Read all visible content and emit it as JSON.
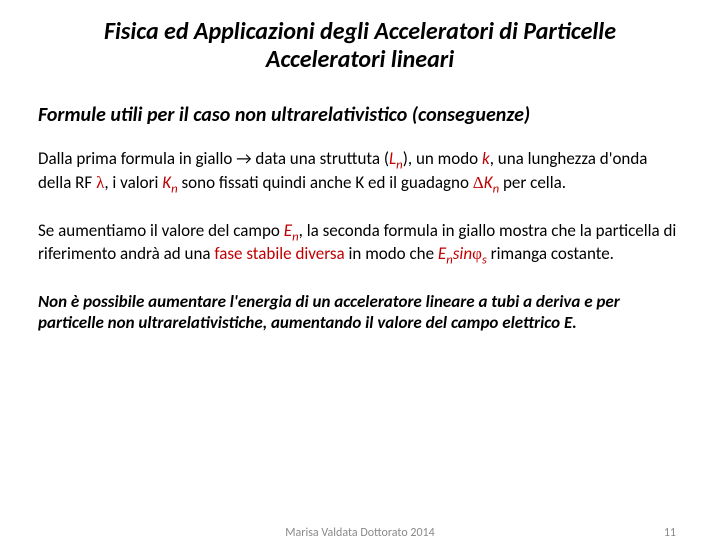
{
  "colors": {
    "text": "#000000",
    "highlight": "#c00000",
    "footer": "#8a8a8a",
    "background": "#ffffff"
  },
  "title": {
    "line1": "Fisica ed Applicazioni degli Acceleratori di Particelle",
    "line2": "Acceleratori lineari"
  },
  "subtitle": "Formule utili per il caso non ultrarelativistico (conseguenze)",
  "p1": {
    "t1": "Dalla prima formula in giallo ",
    "arrow": "→",
    "t2": " data una struttuta (",
    "Ln": "L",
    "Ln_sub": "n",
    "t3": "), un modo ",
    "k": "k",
    "t4": ", una lunghezza d'onda della RF ",
    "lambda": "λ",
    "t5": ", i valori ",
    "Kn": "K",
    "Kn_sub": "n",
    "t6": " sono fissati quindi anche K ed il guadagno ",
    "delta": "Δ",
    "Kn2": "K",
    "Kn2_sub": "n",
    "t7": " per cella."
  },
  "p2": {
    "t1": "Se aumentiamo il valore del campo ",
    "En": "E",
    "En_sub": "n",
    "t2": ", la seconda formula in giallo mostra che la particella di riferimento andrà ad una ",
    "fase": "fase stabile diversa",
    "t3": " in modo che ",
    "En2": "E",
    "En2_sub": "n",
    "sin": "sin",
    "phi": "φ",
    "phi_sub": "s",
    "t4": " rimanga costante."
  },
  "p3": "Non è possibile aumentare l'energia di un acceleratore lineare a tubi a deriva e per particelle non ultrarelativistiche, aumentando il valore del campo elettrico E.",
  "footer": {
    "center": "Marisa Valdata Dottorato 2014",
    "page": "11"
  }
}
